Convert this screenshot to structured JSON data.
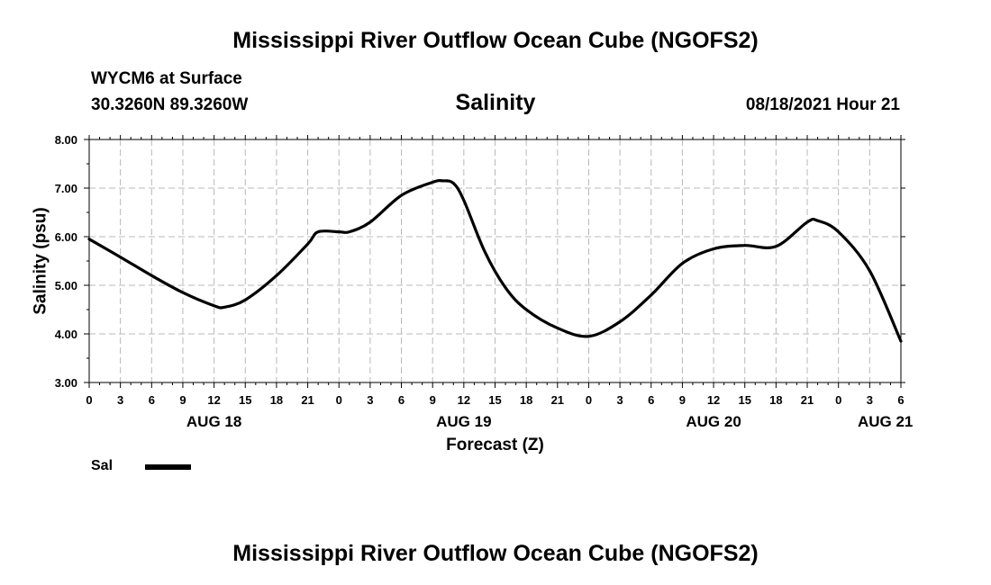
{
  "header": {
    "title": "Mississippi River Outflow Ocean Cube (NGOFS2)",
    "station": "WYCM6 at Surface",
    "coords": "30.3260N  89.3260W",
    "product": "Salinity",
    "datetime": "08/18/2021 Hour 21"
  },
  "footer": {
    "title": "Mississippi River Outflow Ocean Cube (NGOFS2)"
  },
  "legend": {
    "label": "Sal"
  },
  "colors": {
    "line": "#000000",
    "grid": "#b8b8b8"
  },
  "chart_data": {
    "type": "line",
    "title": "Salinity",
    "xlabel": "Forecast (Z)",
    "ylabel": "Salinity (psu)",
    "ylim": [
      3.0,
      8.0
    ],
    "yticks": [
      "3.00",
      "4.00",
      "5.00",
      "6.00",
      "7.00",
      "8.00"
    ],
    "xlim": [
      0,
      78
    ],
    "xticks": [
      "0",
      "3",
      "6",
      "9",
      "12",
      "15",
      "18",
      "21",
      "0",
      "3",
      "6",
      "9",
      "12",
      "15",
      "18",
      "21",
      "0",
      "3",
      "6",
      "9",
      "12",
      "15",
      "18",
      "21",
      "0",
      "3",
      "6"
    ],
    "date_labels": [
      {
        "label": "AUG 18",
        "hour": 12
      },
      {
        "label": "AUG 19",
        "hour": 36
      },
      {
        "label": "AUG 20",
        "hour": 60
      },
      {
        "label": "AUG 21",
        "hour": 76.5
      }
    ],
    "grid": true,
    "series": [
      {
        "name": "Sal",
        "x": [
          0,
          3,
          6,
          9,
          12,
          13,
          15,
          18,
          21,
          22,
          24,
          25,
          27,
          30,
          33,
          34,
          35,
          36,
          38,
          40,
          42,
          45,
          48,
          51,
          54,
          57,
          60,
          63,
          66,
          69,
          70,
          72,
          75,
          78
        ],
        "y": [
          5.95,
          5.58,
          5.2,
          4.85,
          4.58,
          4.55,
          4.7,
          5.2,
          5.85,
          6.1,
          6.1,
          6.1,
          6.3,
          6.85,
          7.12,
          7.15,
          7.1,
          6.75,
          5.7,
          4.95,
          4.5,
          4.12,
          3.95,
          4.25,
          4.8,
          5.45,
          5.75,
          5.82,
          5.8,
          6.3,
          6.33,
          6.1,
          5.3,
          3.85
        ]
      }
    ]
  }
}
